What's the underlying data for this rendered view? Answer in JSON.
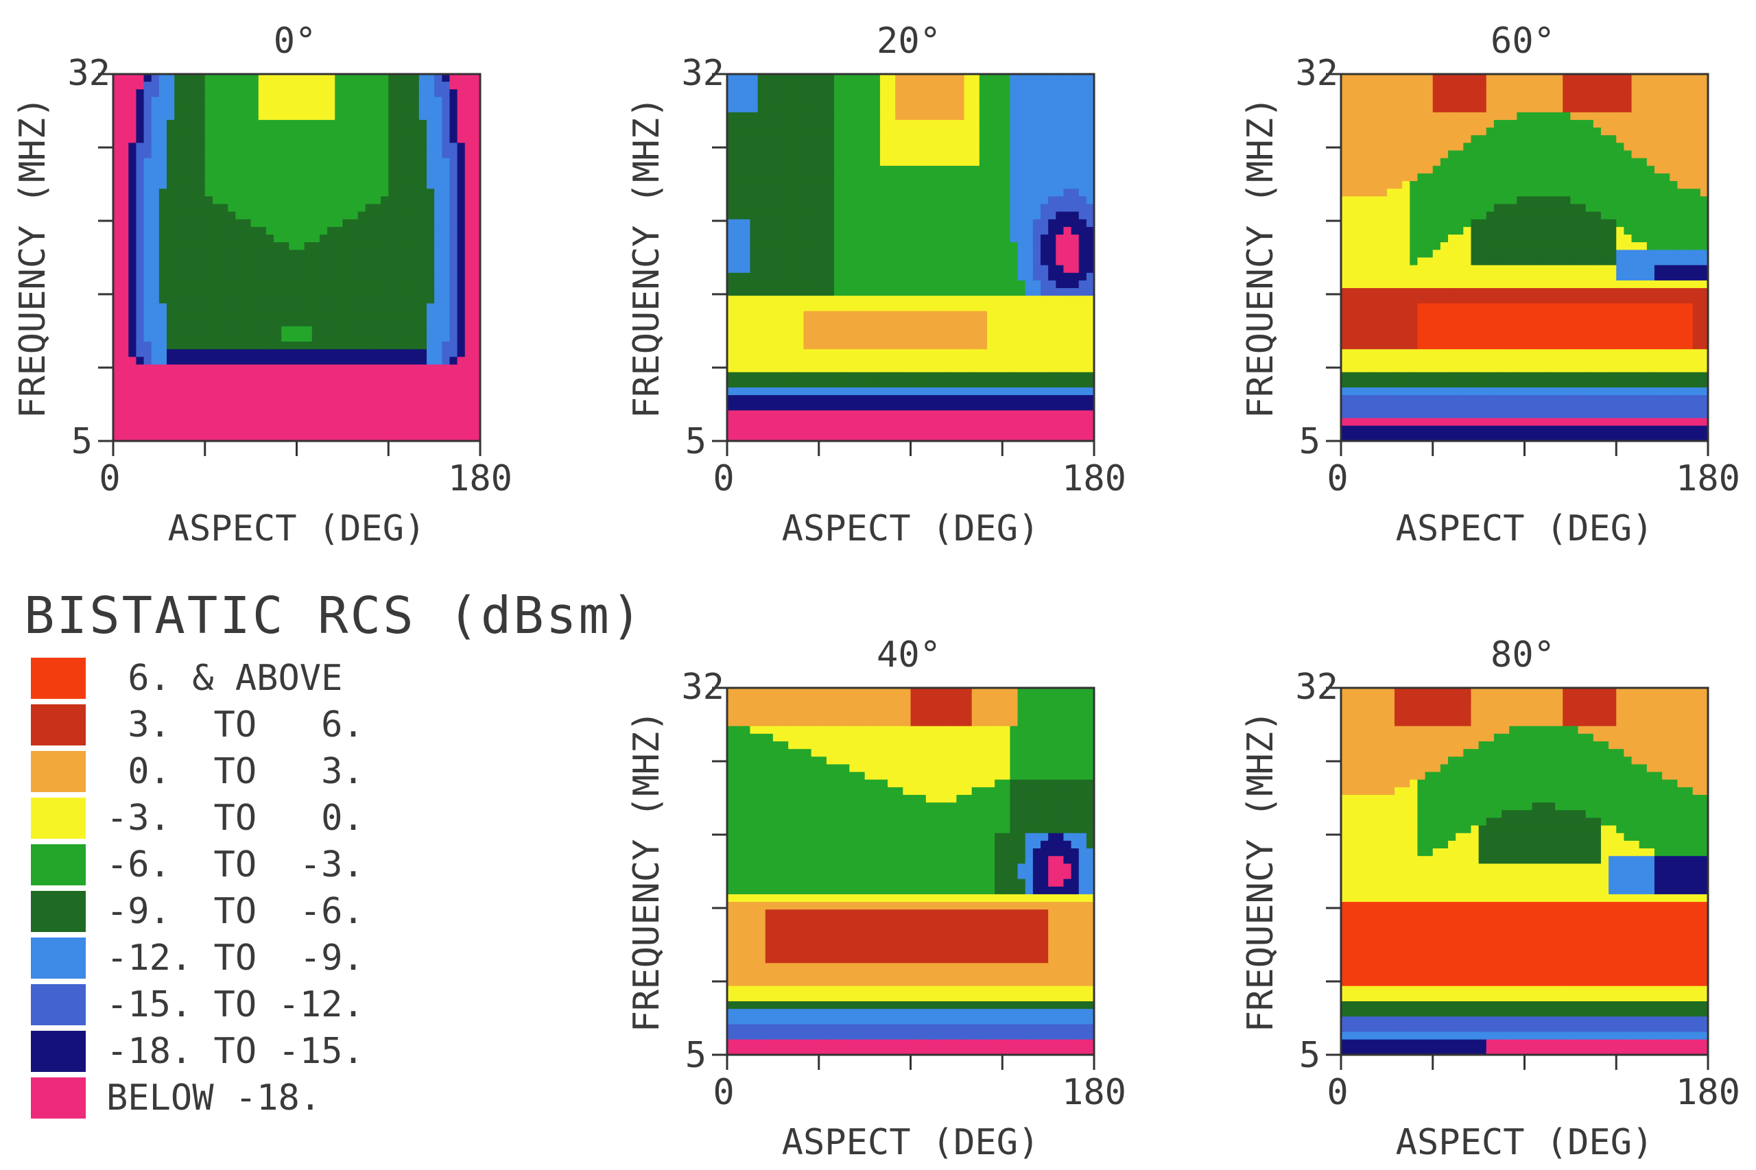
{
  "legend": {
    "title": "BISTATIC RCS (dBsm)",
    "items": [
      {
        "label": " 6. & ABOVE",
        "color": "#f43d0e"
      },
      {
        "label": " 3.  TO   6.",
        "color": "#c8321a"
      },
      {
        "label": " 0.  TO   3.",
        "color": "#f2a83b"
      },
      {
        "label": "-3.  TO   0.",
        "color": "#f7f426"
      },
      {
        "label": "-6.  TO  -3.",
        "color": "#24a62b"
      },
      {
        "label": "-9.  TO  -6.",
        "color": "#1f6b23"
      },
      {
        "label": "-12. TO  -9.",
        "color": "#3d8be6"
      },
      {
        "label": "-15. TO -12.",
        "color": "#4363d0"
      },
      {
        "label": "-18. TO -15.",
        "color": "#14127a"
      },
      {
        "label": "BELOW -18.",
        "color": "#ee2a7b"
      }
    ]
  },
  "chart_data": [
    {
      "type": "heatmap",
      "title": "0°",
      "xlabel": "ASPECT (DEG)",
      "ylabel": "FREQUENCY (MHZ)",
      "xlim": [
        0,
        180
      ],
      "ylim": [
        5,
        32
      ],
      "x_ticks": [
        "0",
        "180"
      ],
      "y_ticks": [
        "5",
        "32"
      ],
      "pattern": "0"
    },
    {
      "type": "heatmap",
      "title": "20°",
      "xlabel": "ASPECT (DEG)",
      "ylabel": "FREQUENCY (MHZ)",
      "xlim": [
        0,
        180
      ],
      "ylim": [
        5,
        32
      ],
      "x_ticks": [
        "0",
        "180"
      ],
      "y_ticks": [
        "5",
        "32"
      ],
      "pattern": "20"
    },
    {
      "type": "heatmap",
      "title": "60°",
      "xlabel": "ASPECT (DEG)",
      "ylabel": "FREQUENCY (MHZ)",
      "xlim": [
        0,
        180
      ],
      "ylim": [
        5,
        32
      ],
      "x_ticks": [
        "0",
        "180"
      ],
      "y_ticks": [
        "5",
        "32"
      ],
      "pattern": "60"
    },
    {
      "type": "heatmap",
      "title": "40°",
      "xlabel": "ASPECT (DEG)",
      "ylabel": "FREQUENCY (MHZ)",
      "xlim": [
        0,
        180
      ],
      "ylim": [
        5,
        32
      ],
      "x_ticks": [
        "0",
        "180"
      ],
      "y_ticks": [
        "5",
        "32"
      ],
      "pattern": "40"
    },
    {
      "type": "heatmap",
      "title": "80°",
      "xlabel": "ASPECT (DEG)",
      "ylabel": "FREQUENCY (MHZ)",
      "xlim": [
        0,
        180
      ],
      "ylim": [
        5,
        32
      ],
      "x_ticks": [
        "0",
        "180"
      ],
      "y_ticks": [
        "5",
        "32"
      ],
      "pattern": "80"
    }
  ]
}
